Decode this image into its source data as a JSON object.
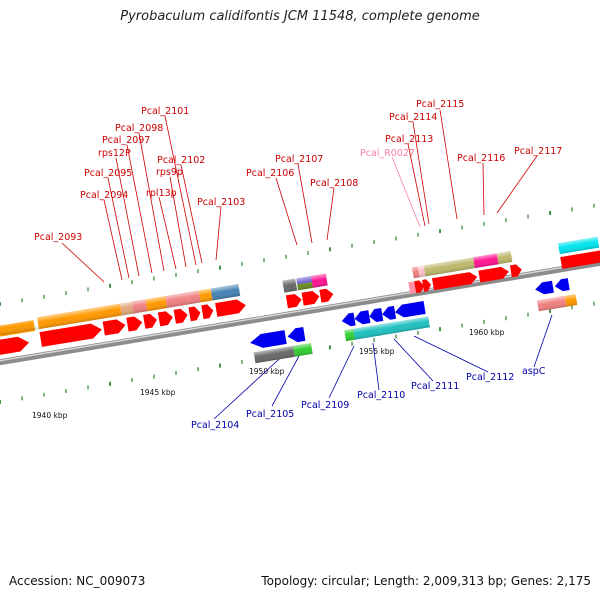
{
  "title": "Pyrobaculum calidifontis JCM 11548, complete genome",
  "footer": {
    "accession": "Accession: NC_009073",
    "summary": "Topology: circular; Length: 2,009,313 bp; Genes: 2,175"
  },
  "colors": {
    "backbone": "#8c8c8c",
    "tick": "#1a7a1a",
    "upper_label": "#cc0000",
    "rna_label": "#ff7f9f",
    "lower_label": "#0000aa"
  },
  "scale": {
    "ticks": [
      {
        "label": "1940 kbp"
      },
      {
        "label": "1945 kbp"
      },
      {
        "label": "1950 kbp"
      },
      {
        "label": "1955 kbp"
      },
      {
        "label": "1960 kbp"
      }
    ]
  },
  "upper_labels": [
    {
      "name": "Pcal_2093",
      "kind": "gene"
    },
    {
      "name": "Pcal_2094",
      "kind": "gene"
    },
    {
      "name": "Pcal_2095",
      "kind": "gene"
    },
    {
      "name": "rps12P",
      "kind": "gene"
    },
    {
      "name": "Pcal_2097",
      "kind": "gene"
    },
    {
      "name": "Pcal_2098",
      "kind": "gene"
    },
    {
      "name": "rpl13p",
      "kind": "gene"
    },
    {
      "name": "Pcal_2101",
      "kind": "gene"
    },
    {
      "name": "rps9p",
      "kind": "gene"
    },
    {
      "name": "Pcal_2102",
      "kind": "gene"
    },
    {
      "name": "Pcal_2103",
      "kind": "gene"
    },
    {
      "name": "Pcal_2106",
      "kind": "gene"
    },
    {
      "name": "Pcal_2107",
      "kind": "gene"
    },
    {
      "name": "Pcal_2108",
      "kind": "gene"
    },
    {
      "name": "Pcal_R0027",
      "kind": "rna"
    },
    {
      "name": "Pcal_2113",
      "kind": "gene"
    },
    {
      "name": "Pcal_2114",
      "kind": "gene"
    },
    {
      "name": "Pcal_2115",
      "kind": "gene"
    },
    {
      "name": "Pcal_2116",
      "kind": "gene"
    },
    {
      "name": "Pcal_2117",
      "kind": "gene"
    }
  ],
  "lower_labels": [
    {
      "name": "Pcal_2104"
    },
    {
      "name": "Pcal_2105"
    },
    {
      "name": "Pcal_2109"
    },
    {
      "name": "Pcal_2110"
    },
    {
      "name": "Pcal_2111"
    },
    {
      "name": "Pcal_2112"
    },
    {
      "name": "aspC"
    }
  ]
}
